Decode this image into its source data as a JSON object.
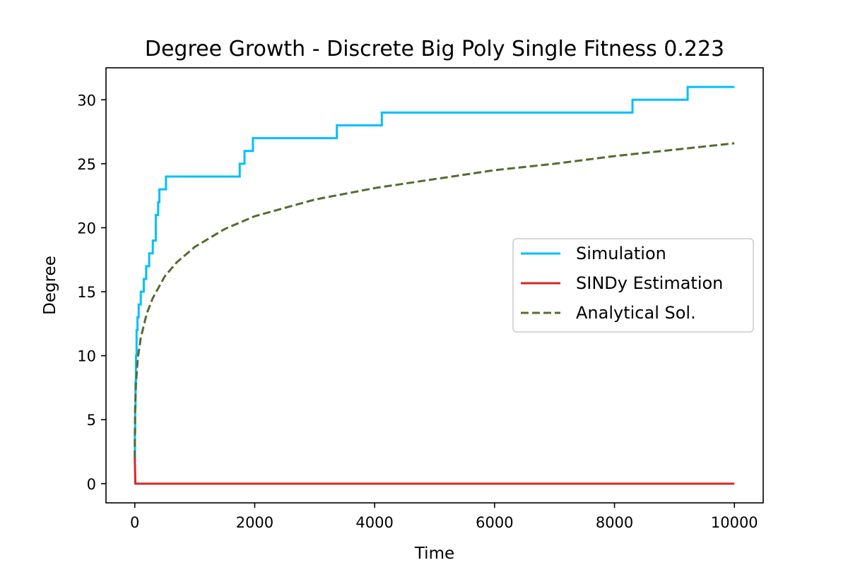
{
  "chart_data": {
    "type": "line",
    "title": "Degree Growth - Discrete Big Poly Single Fitness 0.223",
    "xlabel": "Time",
    "ylabel": "Degree",
    "xlim": [
      -480,
      10480
    ],
    "ylim": [
      -1.5,
      32.5
    ],
    "xticks": [
      0,
      2000,
      4000,
      6000,
      8000,
      10000
    ],
    "yticks": [
      0,
      5,
      10,
      15,
      20,
      25,
      30
    ],
    "grid": false,
    "legend": "center-right",
    "series": [
      {
        "name": "Simulation",
        "color": "#00bfff",
        "style": "solid",
        "step": true,
        "x": [
          0,
          2,
          6,
          12,
          20,
          30,
          45,
          65,
          100,
          150,
          190,
          240,
          300,
          350,
          390,
          410,
          440,
          520,
          1750,
          1830,
          1900,
          1970,
          3370,
          4120,
          8300,
          9220,
          10000
        ],
        "y": [
          2,
          4,
          6,
          8,
          10,
          12,
          13,
          14,
          15,
          16,
          17,
          18,
          19,
          21,
          22,
          23,
          23,
          24,
          25,
          26,
          26,
          27,
          28,
          29,
          30,
          31,
          31
        ]
      },
      {
        "name": "SINDy Estimation",
        "color": "#d62728",
        "style": "solid",
        "x": [
          0,
          10,
          10000
        ],
        "y": [
          2,
          0,
          0
        ]
      },
      {
        "name": "Analytical Sol.",
        "color": "#556b2f",
        "style": "dashed",
        "x": [
          0,
          1,
          5,
          10,
          20,
          50,
          100,
          200,
          300,
          500,
          700,
          1000,
          1500,
          2000,
          3000,
          4000,
          5000,
          6000,
          7000,
          8000,
          9000,
          10000
        ],
        "y": [
          2.0,
          3.3,
          5.3,
          6.5,
          7.8,
          9.8,
          11.4,
          13.3,
          14.5,
          16.2,
          17.3,
          18.5,
          19.9,
          20.9,
          22.2,
          23.1,
          23.8,
          24.5,
          25.0,
          25.6,
          26.1,
          26.6
        ]
      }
    ]
  }
}
